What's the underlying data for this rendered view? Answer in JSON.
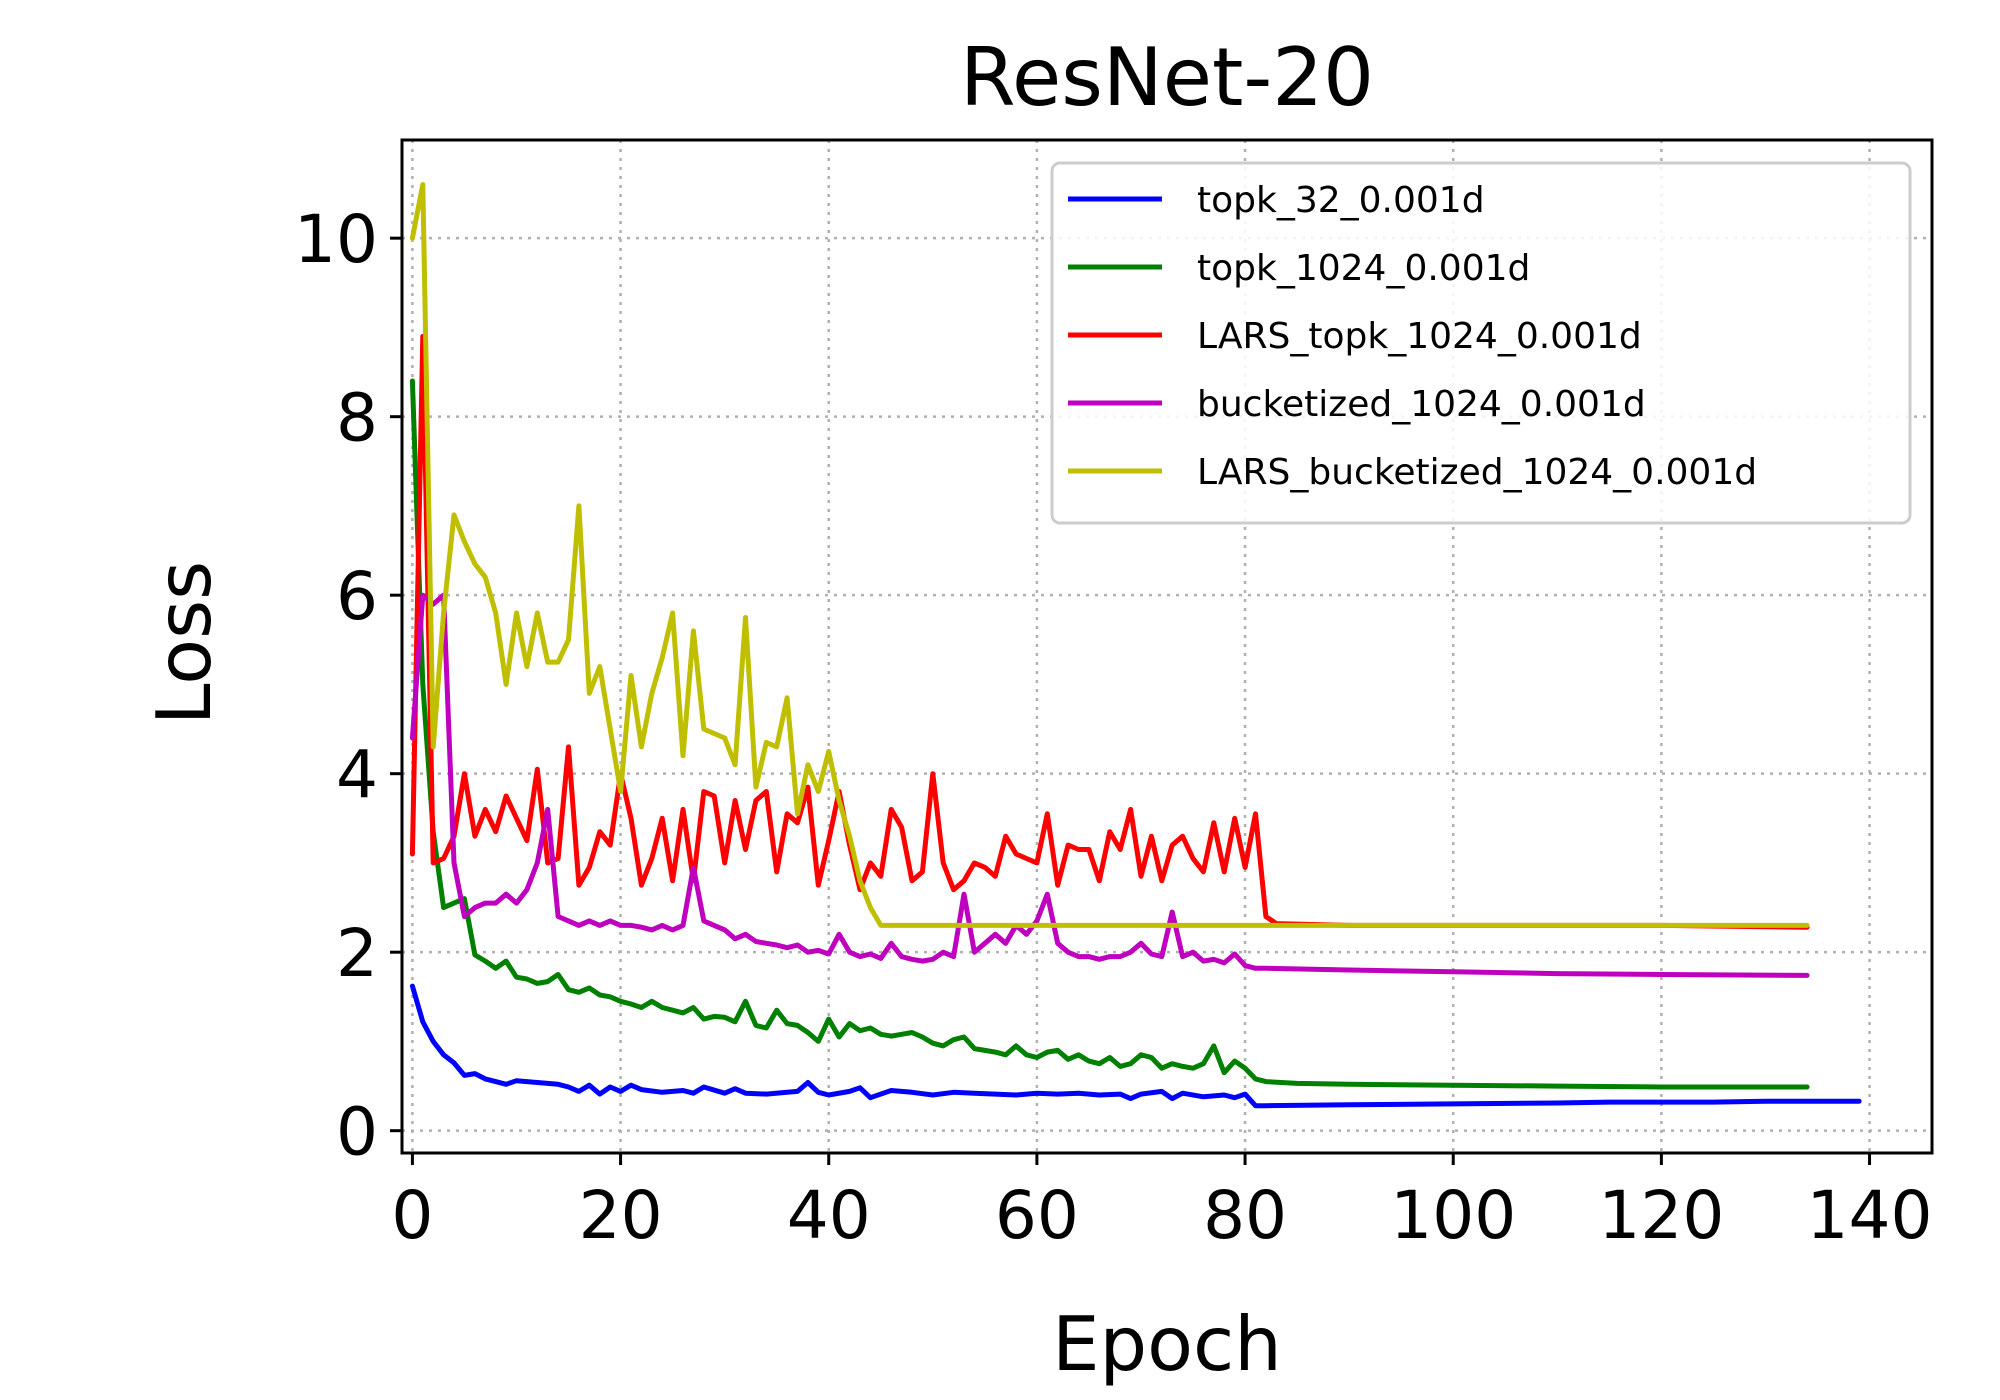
{
  "chart_data": {
    "type": "line",
    "title": "ResNet-20",
    "xlabel": "Epoch",
    "ylabel": "Loss",
    "xlim": [
      -1,
      146
    ],
    "ylim": [
      -0.25,
      11.1
    ],
    "xticks": [
      0,
      20,
      40,
      60,
      80,
      100,
      120,
      140
    ],
    "yticks": [
      0,
      2,
      4,
      6,
      8,
      10
    ],
    "grid": true,
    "legend_position": "top-right",
    "series": [
      {
        "name": "topk_32_0.001d",
        "color": "#0000ff",
        "x": [
          0,
          1,
          2,
          3,
          4,
          5,
          6,
          7,
          8,
          9,
          10,
          12,
          14,
          15,
          16,
          17,
          18,
          19,
          20,
          21,
          22,
          24,
          26,
          27,
          28,
          30,
          31,
          32,
          34,
          36,
          37,
          38,
          39,
          40,
          42,
          43,
          44,
          46,
          48,
          50,
          52,
          54,
          56,
          58,
          60,
          62,
          64,
          66,
          68,
          69,
          70,
          72,
          73,
          74,
          76,
          78,
          79,
          80,
          81,
          82,
          90,
          100,
          110,
          115,
          120,
          125,
          130,
          139
        ],
        "y": [
          1.62,
          1.22,
          1.0,
          0.85,
          0.76,
          0.62,
          0.64,
          0.58,
          0.55,
          0.52,
          0.56,
          0.54,
          0.52,
          0.49,
          0.44,
          0.51,
          0.41,
          0.49,
          0.44,
          0.51,
          0.46,
          0.43,
          0.45,
          0.42,
          0.49,
          0.42,
          0.47,
          0.42,
          0.41,
          0.43,
          0.44,
          0.54,
          0.43,
          0.4,
          0.44,
          0.48,
          0.37,
          0.45,
          0.43,
          0.4,
          0.43,
          0.42,
          0.41,
          0.4,
          0.42,
          0.41,
          0.42,
          0.4,
          0.41,
          0.36,
          0.41,
          0.44,
          0.36,
          0.42,
          0.38,
          0.4,
          0.37,
          0.41,
          0.28,
          0.28,
          0.29,
          0.3,
          0.31,
          0.32,
          0.32,
          0.32,
          0.33,
          0.33
        ]
      },
      {
        "name": "topk_1024_0.001d",
        "color": "#008000",
        "x": [
          0,
          1,
          2,
          3,
          4,
          5,
          6,
          7,
          8,
          9,
          10,
          11,
          12,
          13,
          14,
          15,
          16,
          17,
          18,
          19,
          20,
          21,
          22,
          23,
          24,
          25,
          26,
          27,
          28,
          29,
          30,
          31,
          32,
          33,
          34,
          35,
          36,
          37,
          38,
          39,
          40,
          41,
          42,
          43,
          44,
          45,
          46,
          47,
          48,
          49,
          50,
          51,
          52,
          53,
          54,
          55,
          56,
          57,
          58,
          59,
          60,
          61,
          62,
          63,
          64,
          65,
          66,
          67,
          68,
          69,
          70,
          71,
          72,
          73,
          74,
          75,
          76,
          77,
          78,
          79,
          80,
          81,
          82,
          85,
          90,
          100,
          110,
          120,
          134
        ],
        "y": [
          8.4,
          5.0,
          3.35,
          2.5,
          2.55,
          2.6,
          1.97,
          1.9,
          1.82,
          1.9,
          1.72,
          1.7,
          1.65,
          1.67,
          1.75,
          1.58,
          1.55,
          1.6,
          1.52,
          1.5,
          1.45,
          1.42,
          1.38,
          1.45,
          1.38,
          1.35,
          1.32,
          1.38,
          1.25,
          1.28,
          1.27,
          1.22,
          1.45,
          1.18,
          1.15,
          1.35,
          1.2,
          1.18,
          1.1,
          1.0,
          1.25,
          1.05,
          1.2,
          1.12,
          1.15,
          1.08,
          1.06,
          1.08,
          1.1,
          1.05,
          0.98,
          0.95,
          1.02,
          1.05,
          0.92,
          0.9,
          0.88,
          0.85,
          0.95,
          0.85,
          0.82,
          0.88,
          0.9,
          0.8,
          0.85,
          0.78,
          0.75,
          0.82,
          0.72,
          0.75,
          0.85,
          0.82,
          0.7,
          0.75,
          0.72,
          0.7,
          0.75,
          0.95,
          0.65,
          0.78,
          0.7,
          0.58,
          0.55,
          0.53,
          0.52,
          0.51,
          0.5,
          0.49,
          0.49
        ]
      },
      {
        "name": "LARS_topk_1024_0.001d",
        "color": "#ff0000",
        "x": [
          0,
          1,
          2,
          3,
          4,
          5,
          6,
          7,
          8,
          9,
          10,
          11,
          12,
          13,
          14,
          15,
          16,
          17,
          18,
          19,
          20,
          21,
          22,
          23,
          24,
          25,
          26,
          27,
          28,
          29,
          30,
          31,
          32,
          33,
          34,
          35,
          36,
          37,
          38,
          39,
          40,
          41,
          42,
          43,
          44,
          45,
          46,
          47,
          48,
          49,
          50,
          51,
          52,
          53,
          54,
          55,
          56,
          57,
          58,
          59,
          60,
          61,
          62,
          63,
          64,
          65,
          66,
          67,
          68,
          69,
          70,
          71,
          72,
          73,
          74,
          75,
          76,
          77,
          78,
          79,
          80,
          81,
          82,
          83,
          90,
          100,
          110,
          120,
          134
        ],
        "y": [
          3.1,
          8.9,
          3.0,
          3.05,
          3.3,
          4.0,
          3.3,
          3.6,
          3.35,
          3.75,
          3.5,
          3.25,
          4.05,
          3.0,
          3.05,
          4.3,
          2.75,
          2.95,
          3.35,
          3.2,
          4.0,
          3.5,
          2.75,
          3.05,
          3.5,
          2.8,
          3.6,
          2.8,
          3.8,
          3.75,
          3.0,
          3.7,
          3.15,
          3.7,
          3.8,
          2.9,
          3.55,
          3.45,
          3.85,
          2.75,
          3.25,
          3.8,
          3.2,
          2.7,
          3.0,
          2.85,
          3.6,
          3.4,
          2.8,
          2.9,
          4.0,
          3.0,
          2.7,
          2.8,
          3.0,
          2.95,
          2.85,
          3.3,
          3.1,
          3.05,
          3.0,
          3.55,
          2.75,
          3.2,
          3.15,
          3.15,
          2.8,
          3.35,
          3.15,
          3.6,
          2.85,
          3.3,
          2.8,
          3.2,
          3.3,
          3.05,
          2.9,
          3.45,
          2.9,
          3.5,
          2.95,
          3.55,
          2.4,
          2.32,
          2.3,
          2.3,
          2.3,
          2.3,
          2.28
        ]
      },
      {
        "name": "bucketized_1024_0.001d",
        "color": "#bf00bf",
        "x": [
          0,
          1,
          2,
          3,
          4,
          5,
          6,
          7,
          8,
          9,
          10,
          11,
          12,
          13,
          14,
          15,
          16,
          17,
          18,
          19,
          20,
          21,
          22,
          23,
          24,
          25,
          26,
          27,
          28,
          29,
          30,
          31,
          32,
          33,
          34,
          35,
          36,
          37,
          38,
          39,
          40,
          41,
          42,
          43,
          44,
          45,
          46,
          47,
          48,
          49,
          50,
          51,
          52,
          53,
          54,
          55,
          56,
          57,
          58,
          59,
          60,
          61,
          62,
          63,
          64,
          65,
          66,
          67,
          68,
          69,
          70,
          71,
          72,
          73,
          74,
          75,
          76,
          77,
          78,
          79,
          80,
          81,
          82,
          90,
          100,
          110,
          120,
          134
        ],
        "y": [
          4.4,
          6.0,
          5.9,
          6.0,
          3.0,
          2.4,
          2.5,
          2.55,
          2.55,
          2.65,
          2.55,
          2.7,
          3.0,
          3.6,
          2.4,
          2.35,
          2.3,
          2.35,
          2.3,
          2.35,
          2.3,
          2.3,
          2.28,
          2.25,
          2.3,
          2.25,
          2.3,
          2.95,
          2.35,
          2.3,
          2.25,
          2.15,
          2.2,
          2.12,
          2.1,
          2.08,
          2.05,
          2.08,
          2.0,
          2.02,
          1.98,
          2.2,
          2.0,
          1.95,
          1.98,
          1.93,
          2.1,
          1.95,
          1.92,
          1.9,
          1.92,
          2.0,
          1.95,
          2.65,
          2.0,
          2.1,
          2.2,
          2.1,
          2.3,
          2.2,
          2.35,
          2.65,
          2.1,
          2.0,
          1.95,
          1.95,
          1.92,
          1.95,
          1.95,
          2.0,
          2.1,
          1.98,
          1.95,
          2.45,
          1.95,
          2.0,
          1.9,
          1.92,
          1.88,
          1.98,
          1.85,
          1.82,
          1.82,
          1.8,
          1.78,
          1.76,
          1.75,
          1.74
        ]
      },
      {
        "name": "LARS_bucketized_1024_0.001d",
        "color": "#bfbf00",
        "x": [
          0,
          1,
          2,
          3,
          4,
          5,
          6,
          7,
          8,
          9,
          10,
          11,
          12,
          13,
          14,
          15,
          16,
          17,
          18,
          19,
          20,
          21,
          22,
          23,
          24,
          25,
          26,
          27,
          28,
          29,
          30,
          31,
          32,
          33,
          34,
          35,
          36,
          37,
          38,
          39,
          40,
          41,
          42,
          43,
          44,
          45,
          46,
          60,
          80,
          100,
          120,
          134
        ],
        "y": [
          10.0,
          10.6,
          4.3,
          5.8,
          6.9,
          6.6,
          6.35,
          6.2,
          5.8,
          5.0,
          5.8,
          5.2,
          5.8,
          5.25,
          5.25,
          5.5,
          7.0,
          4.9,
          5.2,
          4.5,
          3.8,
          5.1,
          4.3,
          4.9,
          5.3,
          5.8,
          4.2,
          5.6,
          4.5,
          4.45,
          4.4,
          4.1,
          5.75,
          3.85,
          4.35,
          4.3,
          4.85,
          3.55,
          4.1,
          3.8,
          4.25,
          3.7,
          3.3,
          2.8,
          2.5,
          2.3,
          2.3,
          2.3,
          2.3,
          2.3,
          2.3,
          2.3
        ]
      }
    ]
  }
}
